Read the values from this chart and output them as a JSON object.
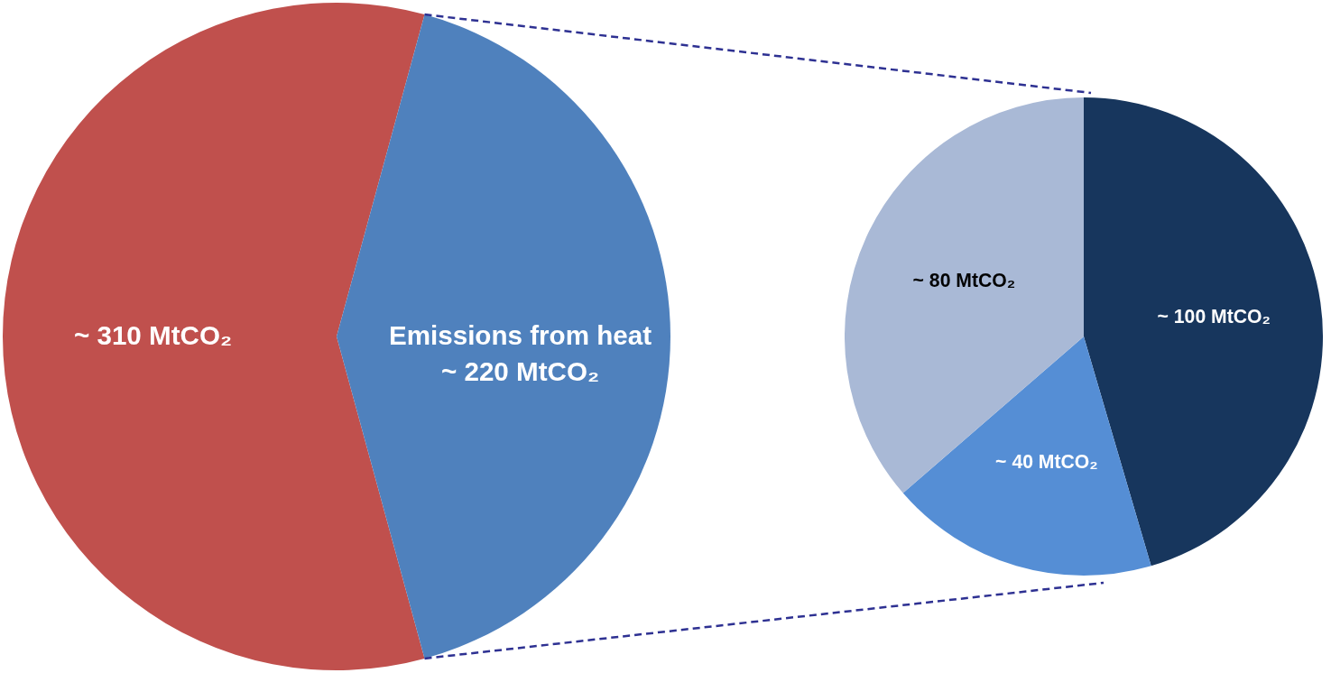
{
  "chart_data": [
    {
      "type": "pie",
      "categories": [
        null,
        "Emissions from heat"
      ],
      "values": [
        310,
        220
      ],
      "value_labels": [
        "~ 310 MtCO₂",
        "~ 220 MtCO₂"
      ],
      "colors": [
        "#c0504d",
        "#4f81bd"
      ]
    },
    {
      "type": "pie",
      "categories": [
        null,
        null,
        null
      ],
      "values": [
        100,
        40,
        80
      ],
      "value_labels": [
        "~ 100 MtCO₂",
        "~ 40 MtCO₂",
        "~ 80 MtCO₂"
      ],
      "colors": [
        "#17365d",
        "#558ed5",
        "#a9b9d6"
      ]
    }
  ]
}
